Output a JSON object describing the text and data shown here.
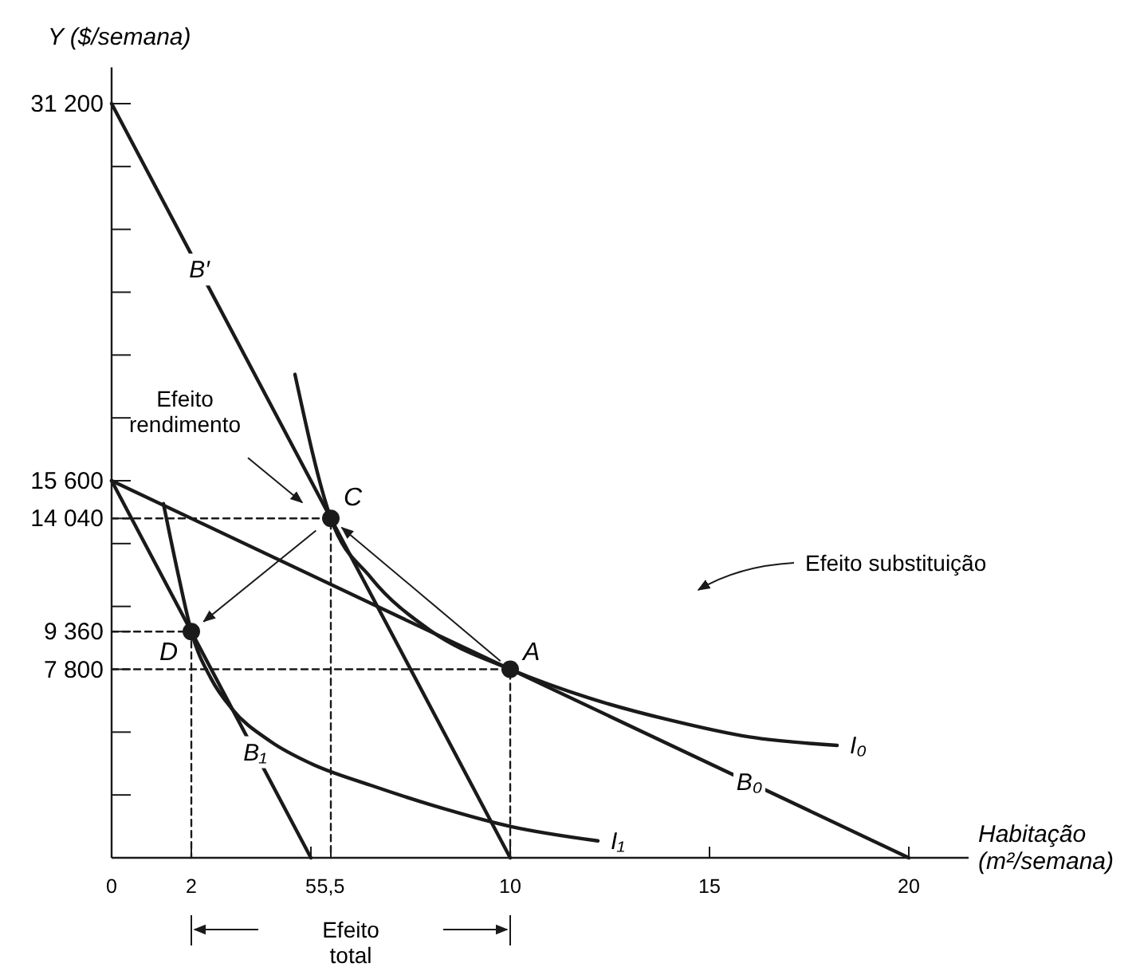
{
  "chart_data": {
    "type": "line",
    "xlabel": "Habitação\n(m²/semana)",
    "ylabel": "Y ($/semana)",
    "xlim": [
      0,
      21.5
    ],
    "ylim": [
      0,
      32700
    ],
    "xticks": [
      0,
      2,
      5,
      {
        "value": 5.5,
        "label": "5,5"
      },
      10,
      15,
      20
    ],
    "yticks": [
      {
        "value": 2600,
        "label": null
      },
      {
        "value": 5200,
        "label": null
      },
      {
        "value": 7800,
        "label": "7 800"
      },
      {
        "value": 9360,
        "label": "9 360"
      },
      {
        "value": 10400,
        "label": null
      },
      {
        "value": 13000,
        "label": null
      },
      {
        "value": 14040,
        "label": "14 040"
      },
      {
        "value": 15600,
        "label": "15 600"
      },
      {
        "value": 18200,
        "label": null
      },
      {
        "value": 20800,
        "label": null
      },
      {
        "value": 23400,
        "label": null
      },
      {
        "value": 26000,
        "label": null
      },
      {
        "value": 28600,
        "label": null
      },
      {
        "value": 31200,
        "label": "31 200"
      }
    ],
    "grid": false,
    "marker": "none",
    "line_style": "solid",
    "series": [
      {
        "name": "B′",
        "color": "#1a1a1a",
        "x": [
          0,
          10
        ],
        "values": [
          31200,
          0
        ]
      },
      {
        "name": "B₀",
        "color": "#1a1a1a",
        "x": [
          0,
          20
        ],
        "values": [
          15600,
          0
        ]
      },
      {
        "name": "B₁",
        "color": "#1a1a1a",
        "x": [
          0,
          5
        ],
        "values": [
          15600,
          0
        ]
      },
      {
        "name": "I₀",
        "color": "#1a1a1a",
        "x": [
          4.6,
          5.5,
          6.5,
          8,
          10,
          12,
          14,
          16,
          18.2
        ],
        "values": [
          20000,
          14040,
          11600,
          9400,
          7800,
          6600,
          5700,
          5000,
          4650
        ]
      },
      {
        "name": "I₁",
        "color": "#1a1a1a",
        "x": [
          1.3,
          1.7,
          2,
          2.5,
          3,
          4,
          5,
          6.5,
          8,
          10,
          12.2
        ],
        "values": [
          14650,
          11500,
          9360,
          7400,
          6200,
          4800,
          3900,
          3000,
          2200,
          1300,
          700
        ]
      },
      {
        "color": "#1a1a1a",
        "line_style": "dashed",
        "x": [
          0,
          10,
          10
        ],
        "values": [
          7800,
          7800,
          0
        ]
      },
      {
        "color": "#1a1a1a",
        "line_style": "dashed",
        "x": [
          0,
          5.5,
          5.5
        ],
        "values": [
          14040,
          14040,
          0
        ]
      },
      {
        "color": "#1a1a1a",
        "line_style": "dashed",
        "x": [
          0,
          2,
          2
        ],
        "values": [
          9360,
          9360,
          0
        ]
      },
      {
        "type": "scatter",
        "marker": "circle",
        "color": "#1a1a1a",
        "x": [
          10,
          5.5,
          2
        ],
        "values": [
          7800,
          14040,
          9360
        ]
      }
    ],
    "annotations": [
      "Efeito\nrendimento",
      "Efeito substituição",
      "Efeito\ntotal",
      {
        "text": "A",
        "x": 10,
        "y": 7800
      },
      {
        "text": "C",
        "x": 5.5,
        "y": 14040
      },
      {
        "text": "D",
        "x": 2,
        "y": 9360
      }
    ]
  }
}
